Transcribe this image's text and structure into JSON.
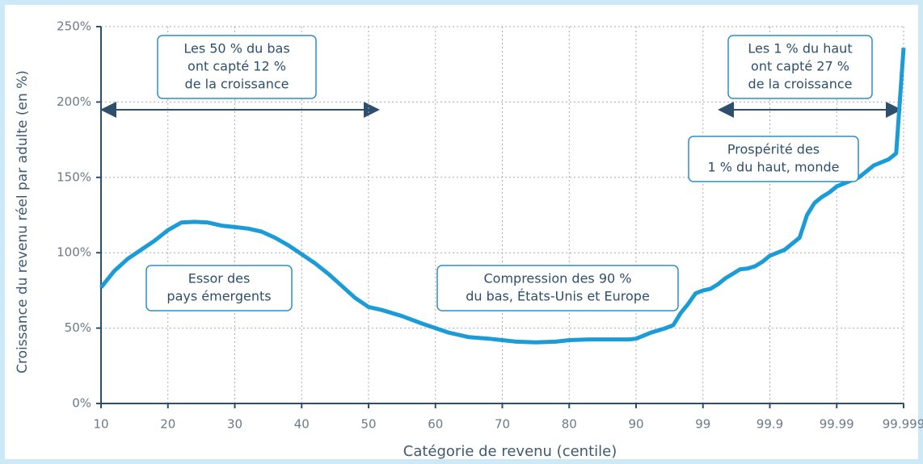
{
  "chart_data": {
    "type": "line",
    "x_label": "Catégorie de revenu (centile)",
    "y_label": "Croissance du revenu réel par adulte (en %)",
    "x": [
      10,
      12,
      14,
      16,
      18,
      20,
      22,
      24,
      26,
      28,
      30,
      32,
      34,
      36,
      38,
      40,
      42,
      44,
      46,
      48,
      50,
      52,
      55,
      58,
      60,
      62,
      65,
      68,
      70,
      72,
      75,
      78,
      80,
      83,
      86,
      89,
      90,
      92,
      94,
      95,
      96,
      97,
      98,
      99,
      99.1,
      99.2,
      99.3,
      99.4,
      99.5,
      99.6,
      99.7,
      99.8,
      99.9,
      99.92,
      99.94,
      99.95,
      99.96,
      99.97,
      99.98,
      99.99,
      99.993,
      99.995,
      99.997,
      99.998,
      99.999
    ],
    "series": [
      {
        "name": "Croissance du revenu réel",
        "color": "#1b9bd7",
        "values": [
          77,
          88,
          96,
          102,
          108,
          115,
          120,
          120.5,
          120,
          118,
          117,
          116,
          114,
          110,
          105,
          99,
          93,
          86,
          78,
          70,
          64,
          62,
          58,
          53,
          50,
          47,
          44,
          43,
          42,
          41,
          40.5,
          41,
          42,
          42.5,
          42.5,
          42.5,
          43,
          47,
          50,
          52,
          60,
          66,
          73,
          75,
          76,
          79,
          83,
          86,
          89,
          89.5,
          91,
          94,
          98,
          102,
          110,
          125,
          133,
          137,
          140,
          144,
          150,
          158,
          162,
          166,
          236
        ]
      }
    ],
    "xlim": [
      10,
      99.999
    ],
    "xticks": [
      10,
      20,
      30,
      40,
      50,
      60,
      70,
      80,
      90,
      99,
      99.9,
      99.99,
      99.999
    ],
    "ylim": [
      0,
      250
    ],
    "yticks": [
      {
        "value": 0,
        "label": "0%"
      },
      {
        "value": 50,
        "label": "50%"
      },
      {
        "value": 100,
        "label": "100%"
      },
      {
        "value": 150,
        "label": "150%"
      },
      {
        "value": 200,
        "label": "200%"
      },
      {
        "value": 250,
        "label": "250%"
      }
    ],
    "grid": true,
    "annotations": [
      [
        "Les 50 % du bas",
        "ont capté 12 %",
        "de la croissance"
      ],
      [
        "Les 1 % du haut",
        "ont capté 27 %",
        "de la croissance"
      ],
      [
        "Prospérité des",
        "1 % du haut, monde"
      ],
      [
        "Essor des",
        "pays émergents"
      ],
      [
        "Compression des 90 %",
        "du bas, États-Unis et Europe"
      ]
    ]
  }
}
